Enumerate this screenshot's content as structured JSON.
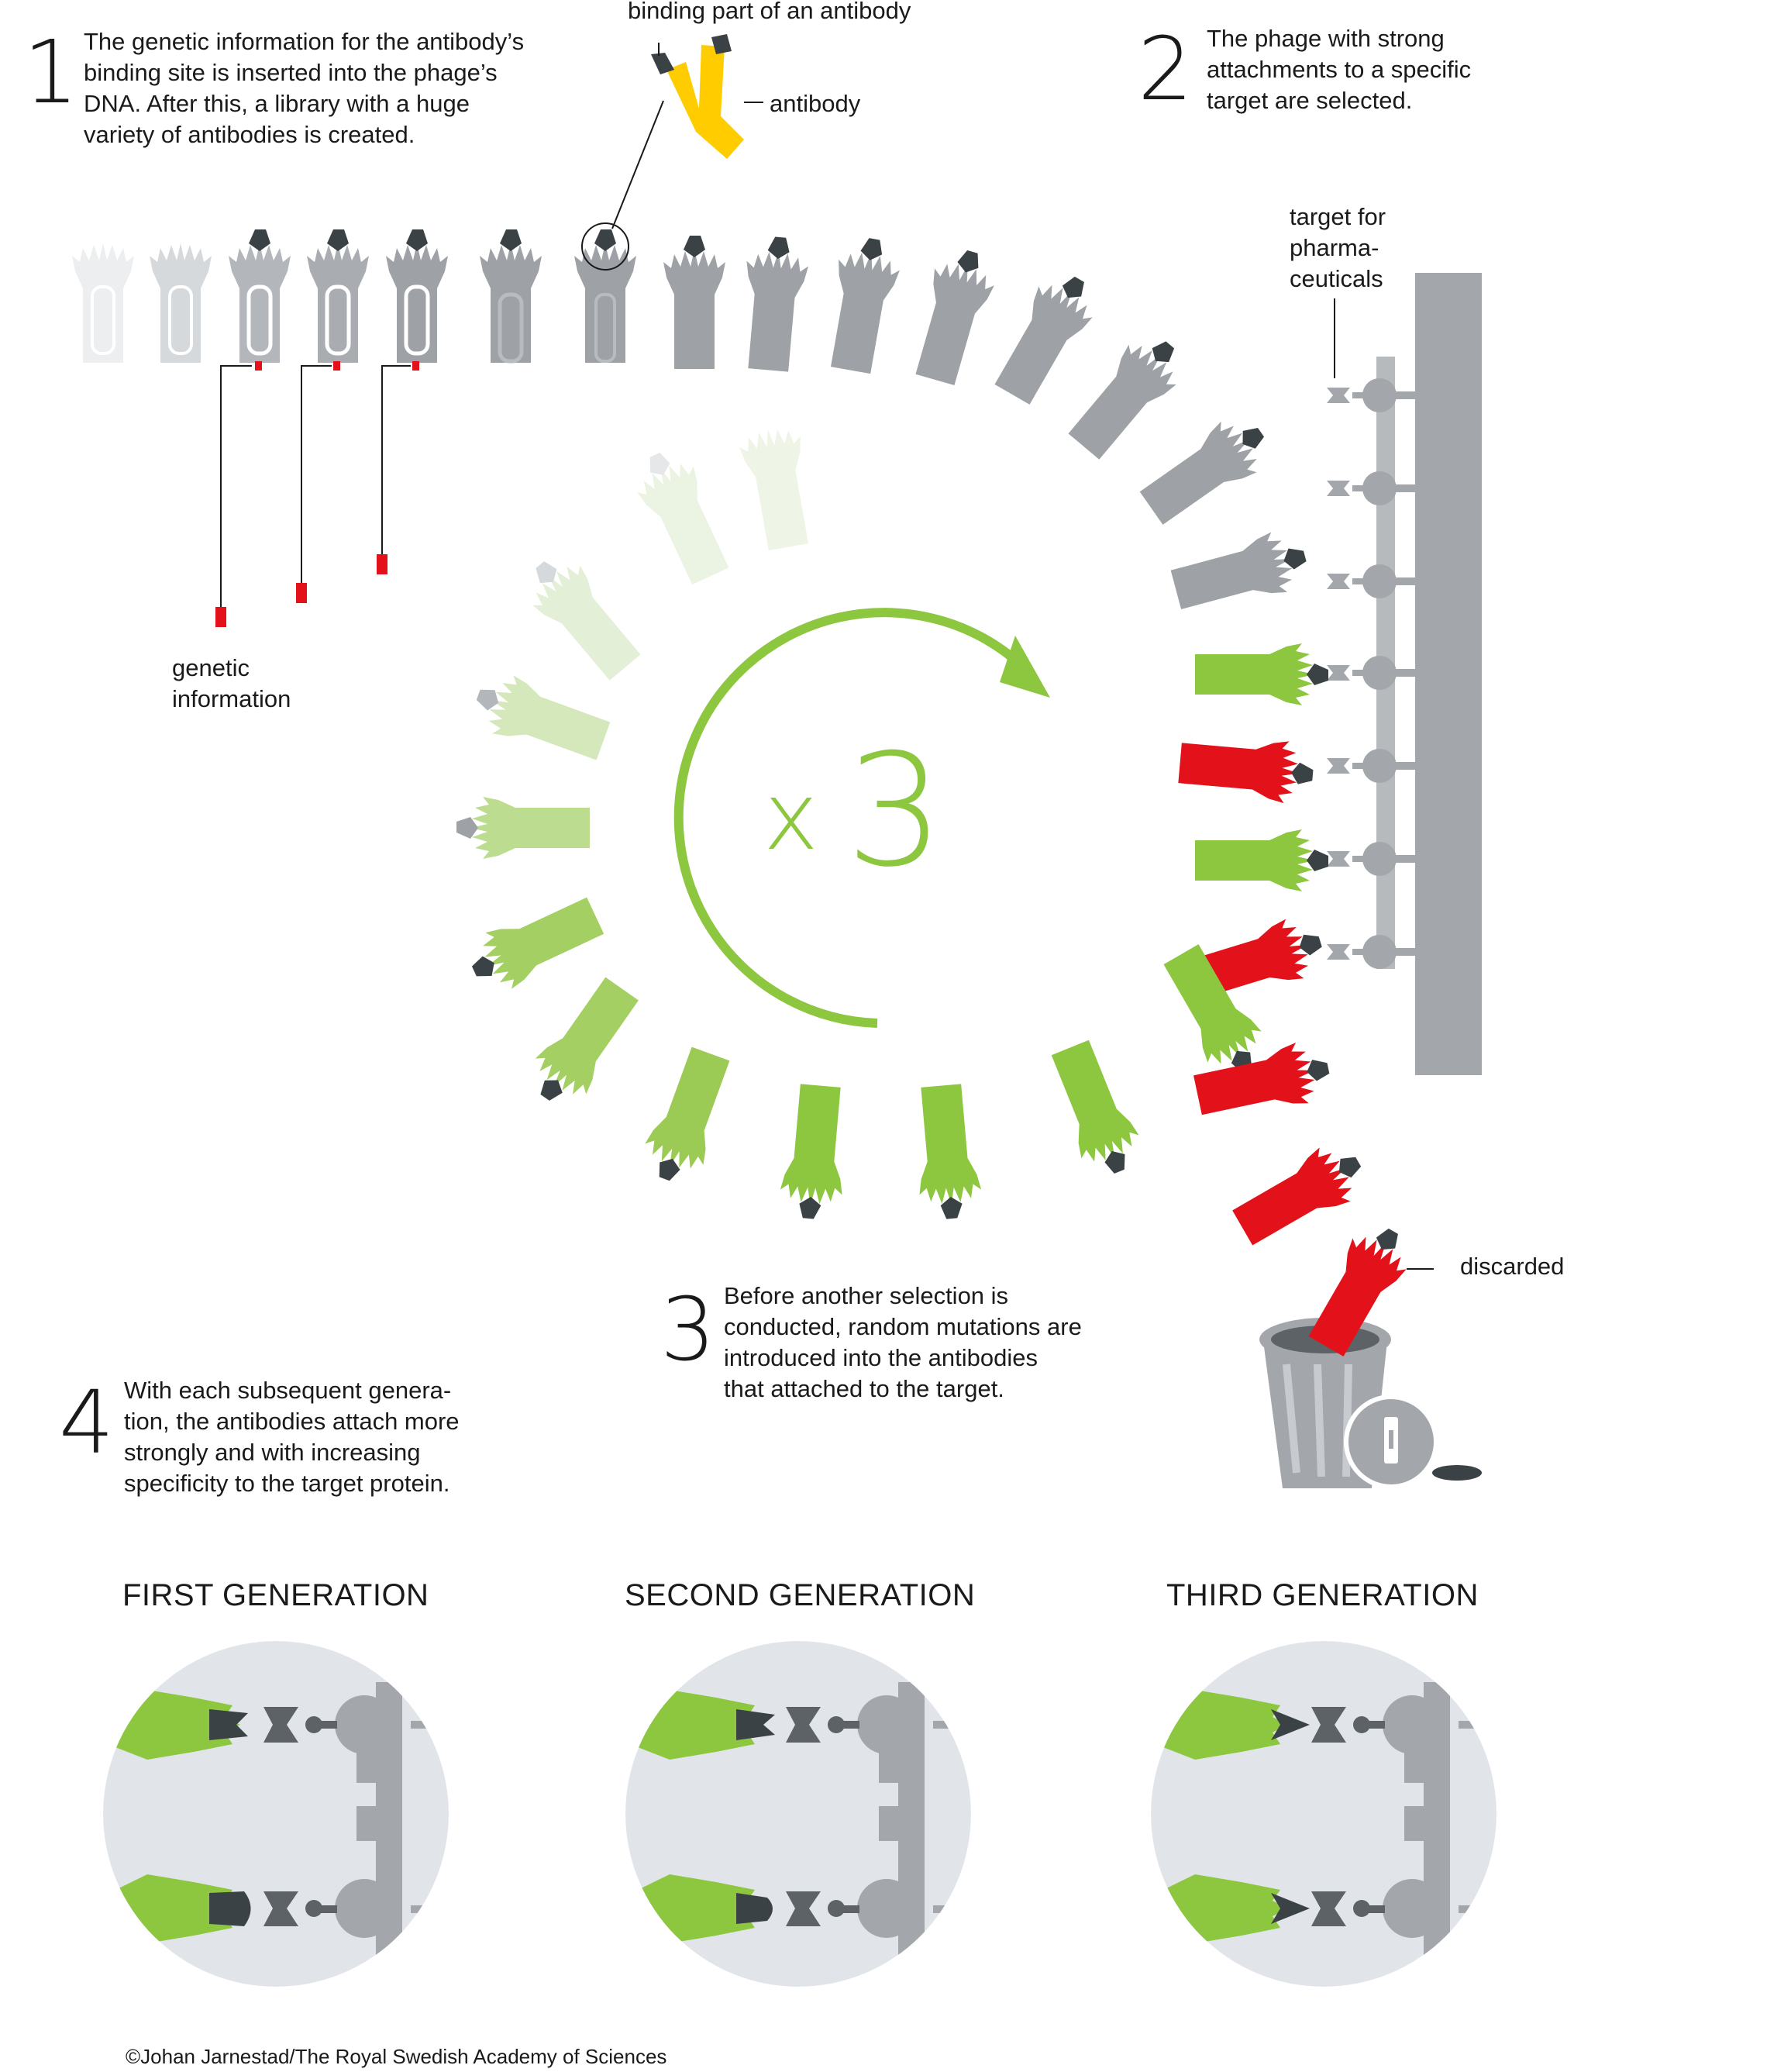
{
  "steps": {
    "s1": {
      "num": "1",
      "text": "The genetic information for the antibody’s\nbinding site is inserted into the phage’s\nDNA. After this, a library with a huge\nvariety of antibodies is created."
    },
    "s2": {
      "num": "2",
      "text": "The phage with strong\nattachments to a specific\ntarget are selected."
    },
    "s3": {
      "num": "3",
      "text": "Before another selection is\nconducted, random mutations are\nintroduced into the antibodies\nthat attached to the target."
    },
    "s4": {
      "num": "4",
      "text": "With each subsequent genera-\ntion, the antibodies attach more\nstrongly and with increasing\nspecificity to the target protein."
    }
  },
  "labels": {
    "binding_part": "binding part of an antibody",
    "antibody": "antibody",
    "target": "target for\npharma-\nceuticals",
    "genetic_info": "genetic\ninformation",
    "discarded": "discarded",
    "cycle_x": "x",
    "cycle_n": "3"
  },
  "generations": [
    "FIRST GENERATION",
    "SECOND GENERATION",
    "THIRD GENERATION"
  ],
  "credit": "©Johan Jarnestad/The Royal Swedish Academy of Sciences",
  "colors": {
    "green": "#8dc63f",
    "red": "#e3121a",
    "yellow": "#ffcc00",
    "gray": "#a3a7ab",
    "dark": "#3b4245",
    "circle_bg": "#e1e5ea"
  }
}
